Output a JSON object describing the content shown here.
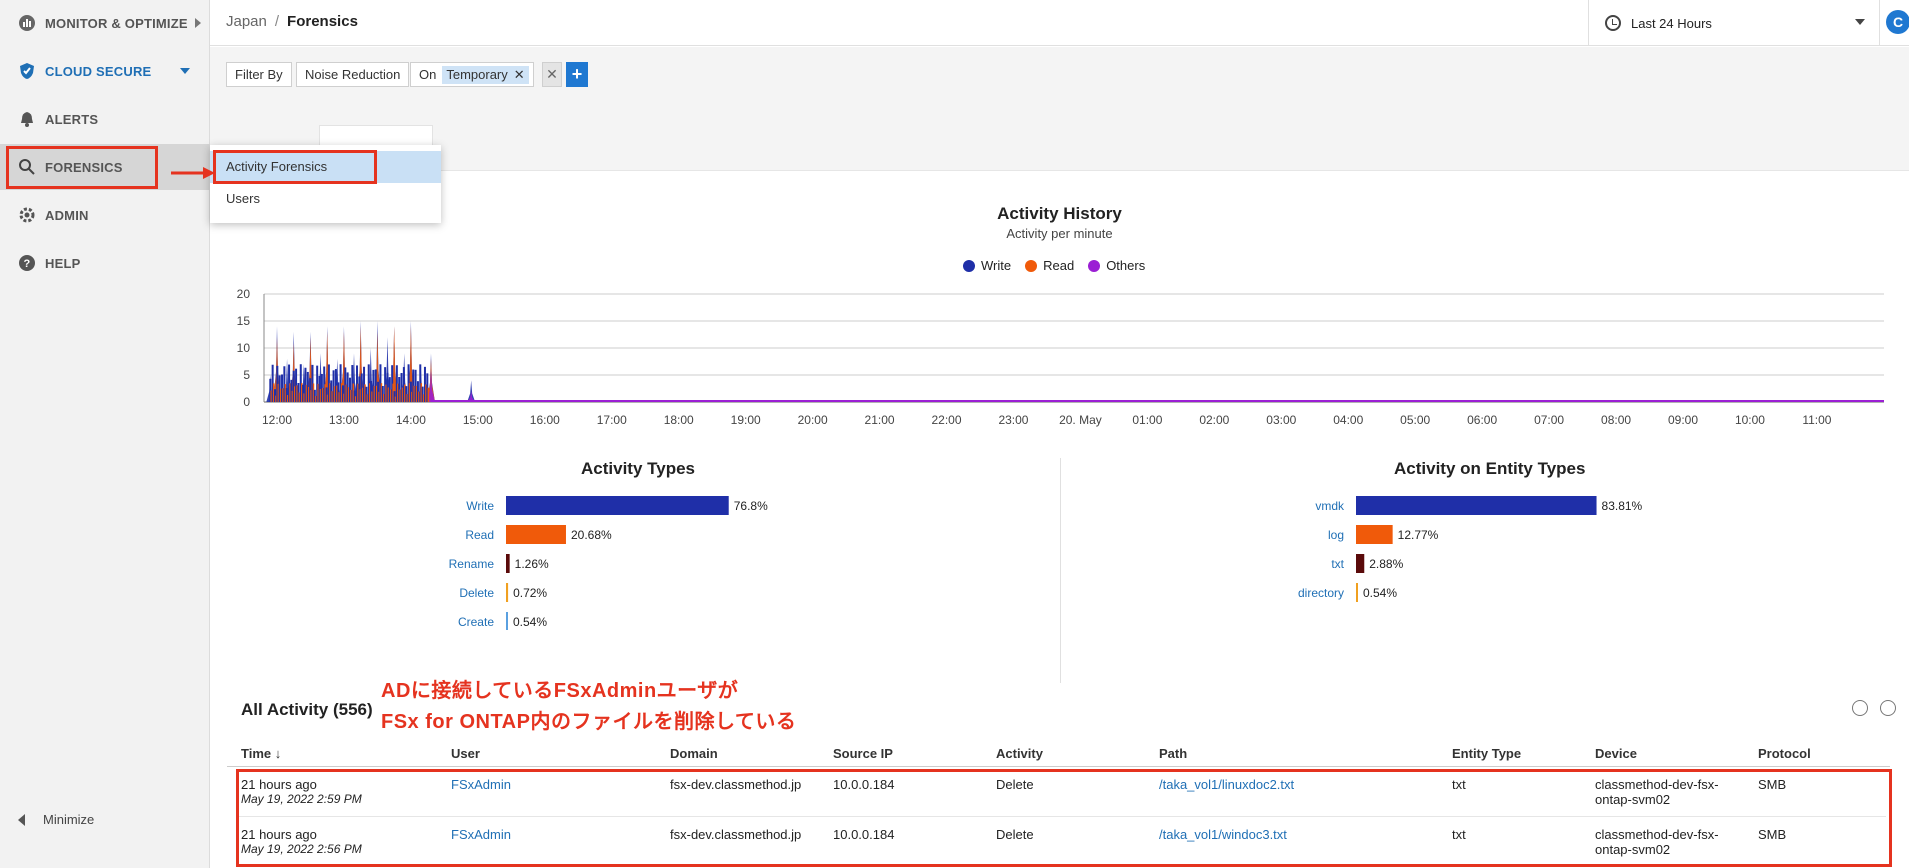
{
  "sidebar": {
    "items": [
      {
        "label": "MONITOR & OPTIMIZE",
        "icon": "chart-icon"
      },
      {
        "label": "CLOUD SECURE",
        "icon": "shield-icon"
      },
      {
        "label": "ALERTS",
        "icon": "bell-icon"
      },
      {
        "label": "FORENSICS",
        "icon": "search-icon"
      },
      {
        "label": "ADMIN",
        "icon": "gear-icon"
      },
      {
        "label": "HELP",
        "icon": "help-icon"
      }
    ],
    "minimize_label": "Minimize"
  },
  "header": {
    "breadcrumb_parent": "Japan",
    "breadcrumb_sep": "/",
    "breadcrumb_current": "Forensics",
    "time_range": "Last 24 Hours",
    "refresh_label": "C"
  },
  "filter": {
    "filter_by": "Filter By",
    "noise_reduction": "Noise Reduction",
    "on_label": "On",
    "chip_value": "Temporary",
    "chip_remove": "✕",
    "clear": "✕",
    "add": "+"
  },
  "dropdown": {
    "items": [
      "Activity Forensics",
      "Users"
    ]
  },
  "annotation": {
    "line1": "ADに接続しているFSxAdminユーザが",
    "line2": "FSx for ONTAP内のファイルを削除している"
  },
  "colors": {
    "write": "#1f2fa8",
    "read": "#f05a0a",
    "others": "#9b1fd4",
    "rename": "#5a0a0a",
    "delete": "#f0a020",
    "create": "#5aa0e0",
    "annotation": "#e5331f",
    "accent": "#1f78d1"
  },
  "chart_data": [
    {
      "type": "area",
      "title": "Activity History",
      "subtitle": "Activity per minute",
      "x_ticks": [
        "12:00",
        "13:00",
        "14:00",
        "15:00",
        "16:00",
        "17:00",
        "18:00",
        "19:00",
        "20:00",
        "21:00",
        "22:00",
        "23:00",
        "20. May",
        "01:00",
        "02:00",
        "03:00",
        "04:00",
        "05:00",
        "06:00",
        "07:00",
        "08:00",
        "09:00",
        "10:00",
        "11:00"
      ],
      "y_ticks": [
        0,
        5,
        10,
        15,
        20
      ],
      "ylim": [
        0,
        20
      ],
      "legend": "top-center",
      "grid": true,
      "series": [
        {
          "name": "Write",
          "peaks": [
            [
              11.9,
              5
            ],
            [
              12.0,
              14
            ],
            [
              12.15,
              8
            ],
            [
              12.25,
              13
            ],
            [
              12.4,
              7
            ],
            [
              12.5,
              13
            ],
            [
              12.65,
              9
            ],
            [
              12.75,
              14
            ],
            [
              12.9,
              8
            ],
            [
              13.0,
              14
            ],
            [
              13.15,
              9
            ],
            [
              13.25,
              15
            ],
            [
              13.4,
              10
            ],
            [
              13.5,
              15
            ],
            [
              13.65,
              12
            ],
            [
              13.75,
              14
            ],
            [
              13.9,
              9
            ],
            [
              14.0,
              15
            ],
            [
              14.15,
              6
            ],
            [
              14.3,
              9
            ],
            [
              14.9,
              4
            ]
          ]
        },
        {
          "name": "Read",
          "peaks": [
            [
              12.0,
              12
            ],
            [
              12.25,
              11
            ],
            [
              12.5,
              12
            ],
            [
              12.75,
              13
            ],
            [
              13.0,
              13
            ],
            [
              13.25,
              14
            ],
            [
              13.5,
              13
            ],
            [
              13.75,
              14
            ],
            [
              14.0,
              14
            ],
            [
              14.3,
              8
            ]
          ]
        },
        {
          "name": "Others",
          "peaks": [
            [
              14.3,
              6
            ],
            [
              14.9,
              2
            ]
          ]
        }
      ]
    },
    {
      "type": "bar",
      "title": "Activity Types",
      "categories": [
        "Write",
        "Read",
        "Rename",
        "Delete",
        "Create"
      ],
      "values": [
        76.8,
        20.68,
        1.26,
        0.72,
        0.54
      ],
      "labels": [
        "76.8%",
        "20.68%",
        "1.26%",
        "0.72%",
        "0.54%"
      ]
    },
    {
      "type": "bar",
      "title": "Activity on Entity Types",
      "categories": [
        "vmdk",
        "log",
        "txt",
        "directory"
      ],
      "values": [
        83.81,
        12.77,
        2.88,
        0.54
      ],
      "labels": [
        "83.81%",
        "12.77%",
        "2.88%",
        "0.54%"
      ]
    }
  ],
  "table": {
    "title": "All Activity (556)",
    "columns": [
      "Time ↓",
      "User",
      "Domain",
      "Source IP",
      "Activity",
      "Path",
      "Entity Type",
      "Device",
      "Protocol"
    ],
    "rows": [
      {
        "time": "21 hours ago",
        "date": "May 19, 2022 2:59 PM",
        "user": "FSxAdmin",
        "domain": "fsx-dev.classmethod.jp",
        "ip": "10.0.0.184",
        "activity": "Delete",
        "path": "/taka_vol1/linuxdoc2.txt",
        "entity": "txt",
        "device1": "classmethod-dev-fsx-",
        "device2": "ontap-svm02",
        "protocol": "SMB"
      },
      {
        "time": "21 hours ago",
        "date": "May 19, 2022 2:56 PM",
        "user": "FSxAdmin",
        "domain": "fsx-dev.classmethod.jp",
        "ip": "10.0.0.184",
        "activity": "Delete",
        "path": "/taka_vol1/windoc3.txt",
        "entity": "txt",
        "device1": "classmethod-dev-fsx-",
        "device2": "ontap-svm02",
        "protocol": "SMB"
      }
    ]
  }
}
